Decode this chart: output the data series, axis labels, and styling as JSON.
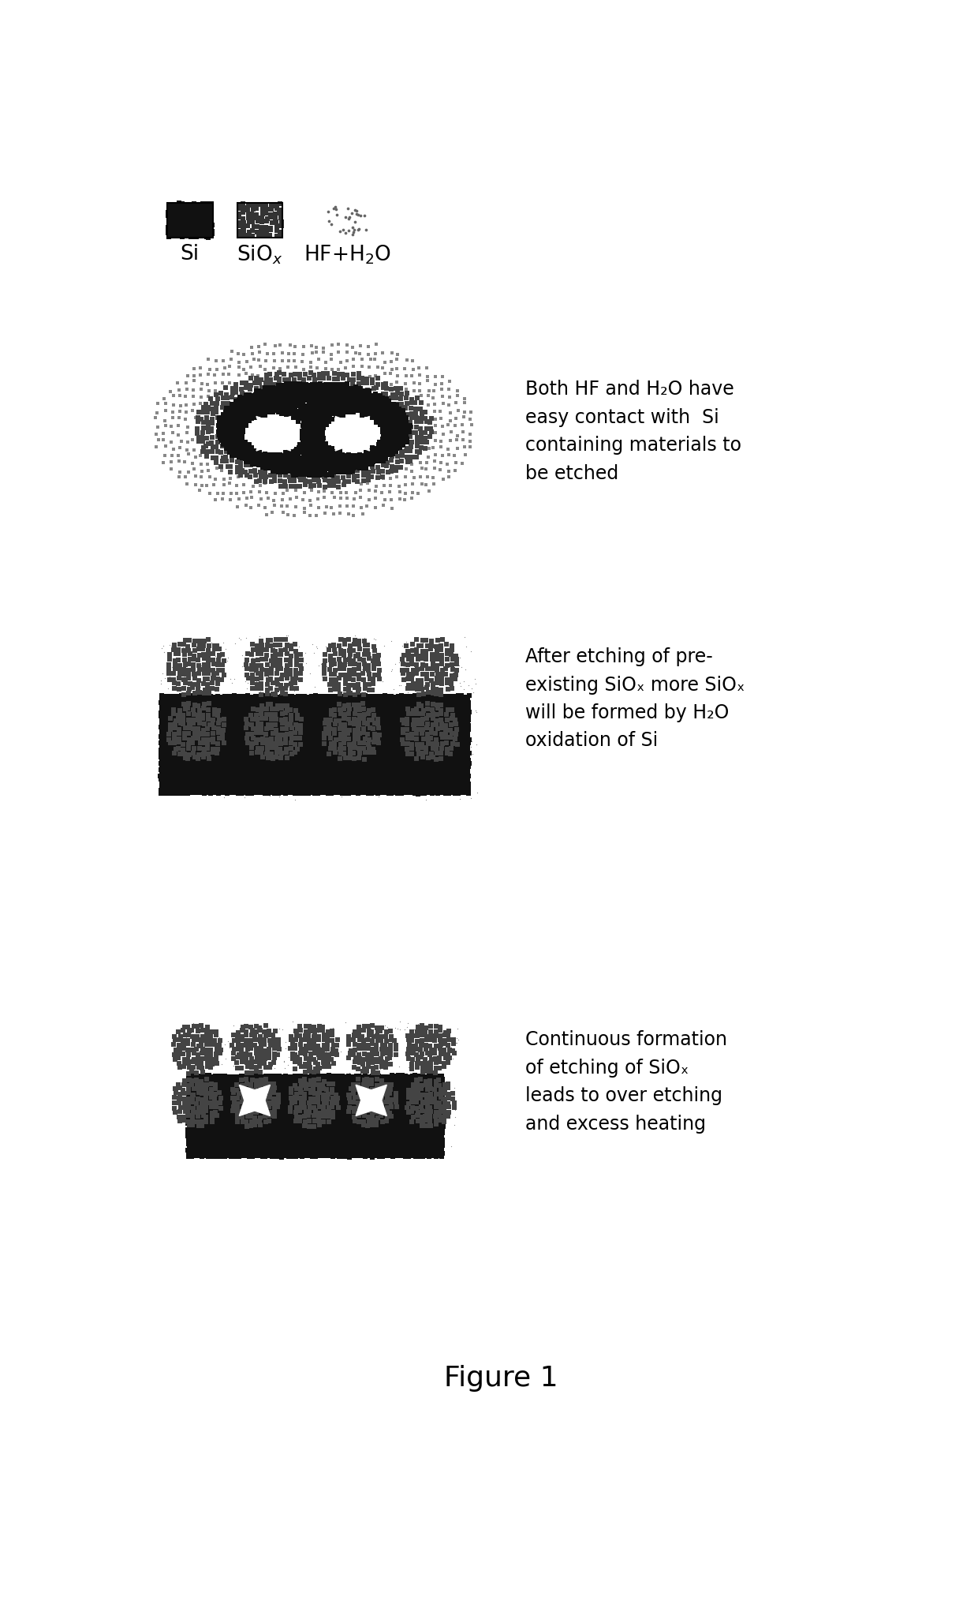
{
  "title": "Figure 1",
  "panel1_text": "Both HF and H₂O have\neasy contact with  Si\ncontaining materials to\nbe etched",
  "panel2_text": "After etching of pre-\nexisting SiOₓ more SiOₓ\nwill be formed by H₂O\noxidation of Si",
  "panel3_text": "Continuous formation\nof etching of SiOₓ\nleads to over etching\nand excess heating",
  "bg_color": "#ffffff",
  "si_color": "#111111",
  "sio_color": "#444444",
  "hf_color": "#888888"
}
